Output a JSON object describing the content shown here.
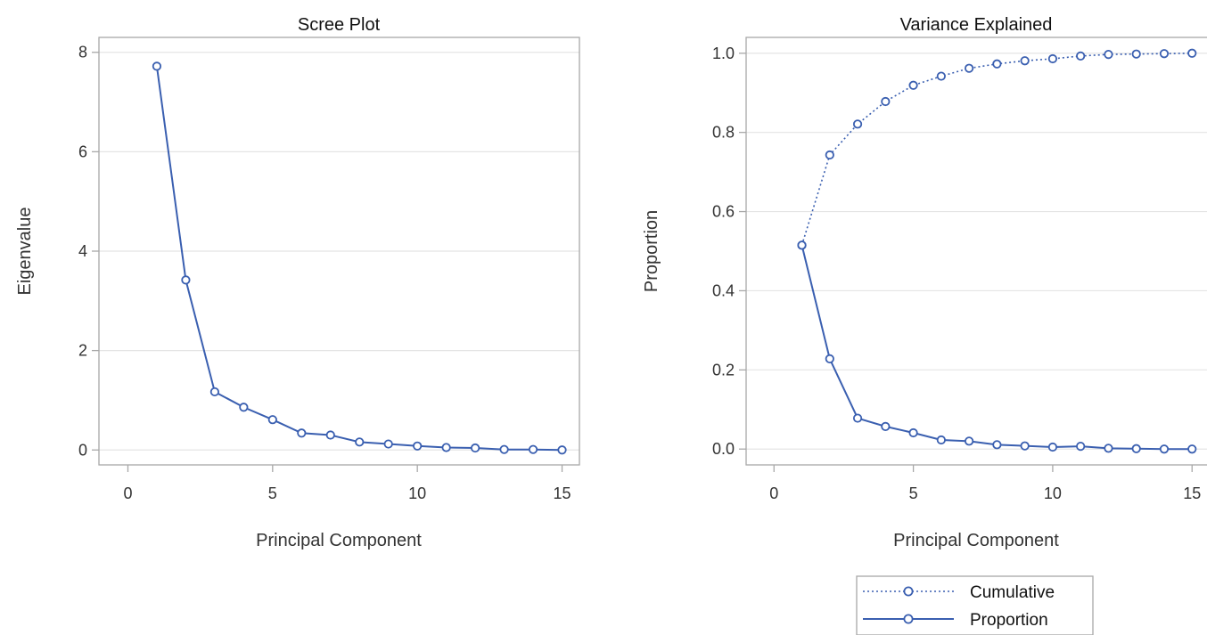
{
  "chart_data": [
    {
      "type": "line",
      "title": "Scree Plot",
      "xlabel": "Principal Component",
      "ylabel": "Eigenvalue",
      "xlim": [
        -1,
        15.6
      ],
      "ylim": [
        -0.3,
        8.3
      ],
      "xticks": [
        0,
        5,
        10,
        15
      ],
      "yticks": [
        0,
        2,
        4,
        6,
        8
      ],
      "ytick_labels": [
        "0",
        "2",
        "4",
        "6",
        "8"
      ],
      "grid": "horizontal",
      "series": [
        {
          "style": "solid",
          "x": [
            1,
            2,
            3,
            4,
            5,
            6,
            7,
            8,
            9,
            10,
            11,
            12,
            13,
            14,
            15
          ],
          "values": [
            7.72,
            3.42,
            1.17,
            0.86,
            0.61,
            0.34,
            0.3,
            0.16,
            0.12,
            0.08,
            0.05,
            0.04,
            0.01,
            0.01,
            0.0
          ]
        }
      ]
    },
    {
      "type": "line",
      "title": "Variance Explained",
      "xlabel": "Principal Component",
      "ylabel": "Proportion",
      "xlim": [
        -1,
        15.6
      ],
      "ylim": [
        -0.04,
        1.04
      ],
      "xticks": [
        0,
        5,
        10,
        15
      ],
      "yticks": [
        0.0,
        0.2,
        0.4,
        0.6,
        0.8,
        1.0
      ],
      "ytick_labels": [
        "0.0",
        "0.2",
        "0.4",
        "0.6",
        "0.8",
        "1.0"
      ],
      "grid": "horizontal",
      "legend_position": "bottom",
      "series": [
        {
          "name": "Cumulative",
          "style": "dotted",
          "x": [
            1,
            2,
            3,
            4,
            5,
            6,
            7,
            8,
            9,
            10,
            11,
            12,
            13,
            14,
            15
          ],
          "values": [
            0.515,
            0.743,
            0.821,
            0.878,
            0.919,
            0.942,
            0.962,
            0.973,
            0.981,
            0.986,
            0.993,
            0.997,
            0.998,
            0.999,
            1.0
          ]
        },
        {
          "name": "Proportion",
          "style": "solid",
          "x": [
            1,
            2,
            3,
            4,
            5,
            6,
            7,
            8,
            9,
            10,
            11,
            12,
            13,
            14,
            15
          ],
          "values": [
            0.515,
            0.228,
            0.078,
            0.057,
            0.041,
            0.023,
            0.02,
            0.011,
            0.008,
            0.005,
            0.007,
            0.002,
            0.001,
            0.0,
            0.0
          ]
        }
      ]
    }
  ],
  "colors": {
    "line": "#3a5fb0",
    "frame": "#a8a8a8",
    "grid": "#e4e4e4",
    "marker_fill": "#ffffff"
  }
}
